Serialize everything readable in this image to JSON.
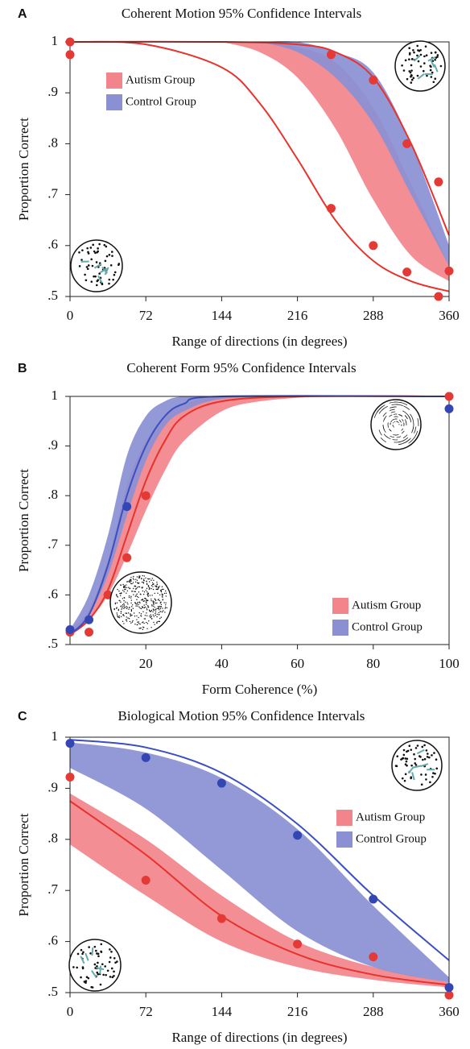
{
  "chart_data": [
    {
      "type": "band-line",
      "label": "A",
      "title": "Coherent Motion 95% Confidence Intervals",
      "xlabel": "Range of  directions (in degrees)",
      "ylabel": "Proportion Correct",
      "xlim": [
        0,
        360
      ],
      "ylim": [
        0.5,
        1
      ],
      "xticks": [
        0,
        72,
        144,
        216,
        288,
        360
      ],
      "yticks": [
        {
          "value": 0.5,
          "label": ".5"
        },
        {
          "value": 0.6,
          "label": ".6"
        },
        {
          "value": 0.7,
          "label": ".7"
        },
        {
          "value": 0.8,
          "label": ".8"
        },
        {
          "value": 0.9,
          "label": ".9"
        },
        1
      ],
      "legend": "upper left",
      "series": [
        {
          "name": "Autism Group",
          "color": "#f2848b",
          "x": [
            144,
            180,
            216,
            252,
            288,
            324,
            360
          ],
          "lower": [
            1,
            0.98,
            0.93,
            0.83,
            0.69,
            0.58,
            0.53
          ],
          "upper": [
            1,
            1,
            0.99,
            0.96,
            0.87,
            0.72,
            0.56
          ]
        },
        {
          "name": "Control Group",
          "color": "#8a90d2",
          "x": [
            180,
            216,
            252,
            288,
            324,
            360
          ],
          "lower": [
            1,
            0.98,
            0.93,
            0.84,
            0.7,
            0.56
          ],
          "upper": [
            1,
            1,
            0.98,
            0.94,
            0.8,
            0.6
          ]
        }
      ],
      "fits": [
        {
          "color": "#e8322c",
          "x": [
            0,
            144,
            216,
            252,
            288,
            324,
            360
          ],
          "values": [
            1,
            1,
            0.995,
            0.98,
            0.93,
            0.8,
            0.62
          ]
        },
        {
          "color": "#e8322c",
          "x": [
            0,
            72,
            144,
            180,
            216,
            252,
            288,
            324,
            360
          ],
          "values": [
            1,
            0.995,
            0.95,
            0.88,
            0.77,
            0.65,
            0.57,
            0.53,
            0.51
          ]
        }
      ],
      "points": [
        {
          "color": "#e53935",
          "x": [
            0,
            0,
            248,
            288,
            320,
            350,
            248,
            288,
            320,
            350,
            360
          ],
          "values": [
            1,
            0.975,
            0.975,
            0.925,
            0.8,
            0.725,
            0.673,
            0.6,
            0.548,
            0.5,
            0.55
          ]
        }
      ]
    },
    {
      "type": "band-line",
      "label": "B",
      "title": "Coherent Form 95% Confidence Intervals",
      "xlabel": "Form Coherence (%)",
      "ylabel": "Proportion Correct",
      "xlim": [
        0,
        100
      ],
      "ylim": [
        0.5,
        1
      ],
      "xticks": [
        20,
        40,
        60,
        80,
        100
      ],
      "yticks": [
        {
          "value": 0.5,
          "label": ".5"
        },
        {
          "value": 0.6,
          "label": ".6"
        },
        {
          "value": 0.7,
          "label": ".7"
        },
        {
          "value": 0.8,
          "label": ".8"
        },
        {
          "value": 0.9,
          "label": ".9"
        },
        1
      ],
      "legend": "lower right",
      "series": [
        {
          "name": "Autism Group",
          "color": "#f2848b",
          "x": [
            0,
            5,
            10,
            15,
            20,
            25,
            30,
            40,
            50,
            65
          ],
          "lower": [
            0.52,
            0.55,
            0.6,
            0.68,
            0.77,
            0.85,
            0.91,
            0.97,
            0.99,
            1
          ],
          "upper": [
            0.53,
            0.57,
            0.67,
            0.82,
            0.91,
            0.96,
            0.985,
            1,
            1,
            1
          ]
        },
        {
          "name": "Control Group",
          "color": "#8a90d2",
          "x": [
            0,
            5,
            10,
            15,
            20,
            25,
            30,
            40,
            60
          ],
          "lower": [
            0.52,
            0.56,
            0.64,
            0.76,
            0.87,
            0.94,
            0.97,
            0.995,
            1
          ],
          "upper": [
            0.53,
            0.6,
            0.72,
            0.88,
            0.96,
            0.99,
            1,
            1,
            1
          ]
        }
      ],
      "fits": [
        {
          "color": "#e8322c",
          "x": [
            0,
            5,
            10,
            15,
            20,
            25,
            30,
            40,
            60,
            100
          ],
          "values": [
            0.52,
            0.55,
            0.61,
            0.72,
            0.83,
            0.91,
            0.96,
            0.99,
            1,
            1
          ]
        },
        {
          "color": "#3b4fc4",
          "x": [
            0,
            5,
            10,
            15,
            20,
            25,
            30,
            40,
            100
          ],
          "values": [
            0.52,
            0.56,
            0.66,
            0.8,
            0.9,
            0.96,
            0.985,
            1,
            1
          ]
        }
      ],
      "points": [
        {
          "color": "#e53935",
          "x": [
            0,
            5,
            10,
            15,
            20,
            100
          ],
          "values": [
            0.525,
            0.525,
            0.6,
            0.675,
            0.8,
            1
          ]
        },
        {
          "color": "#3346b3",
          "x": [
            0,
            5,
            15,
            100
          ],
          "values": [
            0.53,
            0.55,
            0.778,
            0.975
          ]
        }
      ]
    },
    {
      "type": "band-line",
      "label": "C",
      "title": "Biological Motion 95% Confidence Intervals",
      "xlabel": "Range of  directions (in degrees)",
      "ylabel": "Proportion Correct",
      "xlim": [
        0,
        360
      ],
      "ylim": [
        0.5,
        1
      ],
      "xticks": [
        0,
        72,
        144,
        216,
        288,
        360
      ],
      "yticks": [
        {
          "value": 0.5,
          "label": ".5"
        },
        {
          "value": 0.6,
          "label": ".6"
        },
        {
          "value": 0.7,
          "label": ".7"
        },
        {
          "value": 0.8,
          "label": ".8"
        },
        {
          "value": 0.9,
          "label": ".9"
        },
        1
      ],
      "legend": "upper right",
      "series": [
        {
          "name": "Autism Group",
          "color": "#f2848b",
          "x": [
            0,
            72,
            144,
            216,
            288,
            360
          ],
          "lower": [
            0.79,
            0.69,
            0.6,
            0.55,
            0.525,
            0.51
          ],
          "upper": [
            0.89,
            0.8,
            0.69,
            0.6,
            0.55,
            0.52
          ]
        },
        {
          "name": "Control Group",
          "color": "#8a90d2",
          "x": [
            0,
            72,
            144,
            216,
            288,
            360
          ],
          "lower": [
            0.94,
            0.86,
            0.74,
            0.62,
            0.55,
            0.52
          ],
          "upper": [
            0.99,
            0.97,
            0.92,
            0.82,
            0.67,
            0.53
          ]
        }
      ],
      "fits": [
        {
          "color": "#e8322c",
          "x": [
            0,
            72,
            144,
            216,
            288,
            360
          ],
          "values": [
            0.875,
            0.77,
            0.65,
            0.575,
            0.535,
            0.515
          ]
        },
        {
          "color": "#3b4fc4",
          "x": [
            0,
            72,
            144,
            216,
            288,
            360
          ],
          "values": [
            0.995,
            0.98,
            0.93,
            0.83,
            0.69,
            0.563
          ]
        }
      ],
      "points": [
        {
          "color": "#e53935",
          "x": [
            0,
            72,
            144,
            216,
            288,
            360
          ],
          "values": [
            0.922,
            0.72,
            0.645,
            0.595,
            0.57,
            0.495
          ]
        },
        {
          "color": "#3346b3",
          "x": [
            0,
            72,
            144,
            216,
            288,
            360
          ],
          "values": [
            0.988,
            0.96,
            0.91,
            0.808,
            0.683,
            0.51
          ]
        }
      ]
    }
  ]
}
